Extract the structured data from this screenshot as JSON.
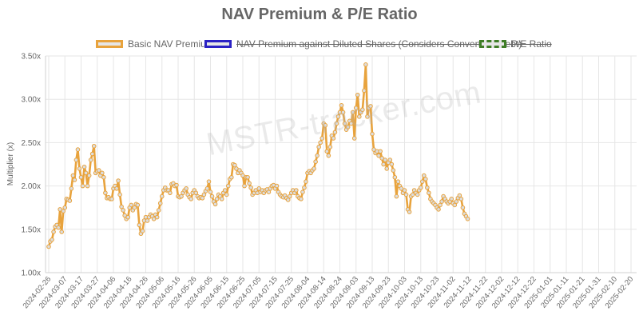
{
  "chart_data": {
    "type": "line",
    "title": "NAV Premium & P/E Ratio",
    "ylabel": "Multiplier (x)",
    "xlabel": "",
    "ylim": [
      1.0,
      3.5
    ],
    "yticks": [
      "1.00x",
      "1.50x",
      "2.00x",
      "2.50x",
      "3.00x",
      "3.50x"
    ],
    "x_tick_labels": [
      "2024-02-26",
      "2024-03-07",
      "2024-03-17",
      "2024-03-27",
      "2024-04-06",
      "2024-04-16",
      "2024-04-26",
      "2024-05-06",
      "2024-05-16",
      "2024-05-26",
      "2024-06-05",
      "2024-06-15",
      "2024-06-25",
      "2024-07-05",
      "2024-07-15",
      "2024-07-25",
      "2024-08-04",
      "2024-08-14",
      "2024-08-24",
      "2024-09-03",
      "2024-09-13",
      "2024-09-23",
      "2024-10-03",
      "2024-10-13",
      "2024-10-23",
      "2024-11-02",
      "2024-11-12",
      "2024-11-22",
      "2024-12-02",
      "2024-12-12",
      "2024-12-22",
      "2025-01-01",
      "2025-01-11",
      "2025-01-21",
      "2025-01-31",
      "2025-02-10",
      "2025-02-20"
    ],
    "days_between_ticks": 10,
    "legend_position": "top",
    "grid": true,
    "series": [
      {
        "name": "Basic NAV Premium",
        "color": "#e8a33d",
        "fill": "#e6e6e6",
        "visible": true,
        "anchors": [
          [
            0,
            1.3
          ],
          [
            1,
            1.36
          ],
          [
            2,
            1.38
          ],
          [
            3,
            1.47
          ],
          [
            4,
            1.53
          ],
          [
            5,
            1.55
          ],
          [
            6,
            1.52
          ],
          [
            7,
            1.73
          ],
          [
            8,
            1.47
          ],
          [
            9,
            1.71
          ],
          [
            10,
            1.75
          ],
          [
            11,
            1.85
          ],
          [
            12,
            1.84
          ],
          [
            13,
            1.83
          ],
          [
            14,
            1.97
          ],
          [
            15,
            2.12
          ],
          [
            16,
            2.07
          ],
          [
            17,
            2.3
          ],
          [
            18,
            2.42
          ],
          [
            19,
            2.2
          ],
          [
            20,
            2.1
          ],
          [
            21,
            2.0
          ],
          [
            22,
            2.22
          ],
          [
            23,
            2.15
          ],
          [
            24,
            2.0
          ],
          [
            25,
            2.12
          ],
          [
            26,
            2.3
          ],
          [
            27,
            2.37
          ],
          [
            28,
            2.46
          ],
          [
            29,
            2.15
          ],
          [
            30,
            2.17
          ],
          [
            31,
            2.18
          ],
          [
            32,
            2.12
          ],
          [
            33,
            2.15
          ],
          [
            34,
            2.1
          ],
          [
            35,
            1.92
          ],
          [
            36,
            1.86
          ],
          [
            37,
            1.87
          ],
          [
            38,
            1.85
          ],
          [
            39,
            1.85
          ],
          [
            40,
            1.97
          ],
          [
            41,
            2.0
          ],
          [
            42,
            1.97
          ],
          [
            43,
            2.06
          ],
          [
            44,
            1.9
          ],
          [
            45,
            1.76
          ],
          [
            46,
            1.72
          ],
          [
            47,
            1.66
          ],
          [
            48,
            1.62
          ],
          [
            49,
            1.64
          ],
          [
            50,
            1.75
          ],
          [
            51,
            1.78
          ],
          [
            52,
            1.72
          ],
          [
            53,
            1.75
          ],
          [
            54,
            1.79
          ],
          [
            55,
            1.78
          ],
          [
            56,
            1.55
          ],
          [
            57,
            1.45
          ],
          [
            58,
            1.48
          ],
          [
            59,
            1.6
          ],
          [
            60,
            1.64
          ],
          [
            61,
            1.6
          ],
          [
            62,
            1.64
          ],
          [
            63,
            1.67
          ],
          [
            64,
            1.65
          ],
          [
            65,
            1.62
          ],
          [
            66,
            1.67
          ],
          [
            67,
            1.64
          ],
          [
            68,
            1.72
          ],
          [
            69,
            1.8
          ],
          [
            70,
            1.88
          ],
          [
            71,
            1.95
          ],
          [
            72,
            1.98
          ],
          [
            73,
            1.95
          ],
          [
            74,
            1.95
          ],
          [
            75,
            1.92
          ],
          [
            76,
            2.02
          ],
          [
            77,
            2.03
          ],
          [
            78,
            2.0
          ],
          [
            79,
            2.01
          ],
          [
            80,
            1.88
          ],
          [
            81,
            1.87
          ],
          [
            82,
            1.88
          ],
          [
            83,
            1.92
          ],
          [
            84,
            1.95
          ],
          [
            85,
            1.97
          ],
          [
            86,
            1.9
          ],
          [
            87,
            1.87
          ],
          [
            88,
            1.85
          ],
          [
            89,
            1.92
          ],
          [
            90,
            1.95
          ],
          [
            91,
            1.92
          ],
          [
            92,
            1.88
          ],
          [
            93,
            1.86
          ],
          [
            94,
            1.87
          ],
          [
            95,
            1.86
          ],
          [
            96,
            1.9
          ],
          [
            97,
            1.94
          ],
          [
            98,
            1.97
          ],
          [
            99,
            2.05
          ],
          [
            100,
            1.93
          ],
          [
            101,
            1.88
          ],
          [
            102,
            1.82
          ],
          [
            103,
            1.79
          ],
          [
            104,
            1.85
          ],
          [
            105,
            1.9
          ],
          [
            106,
            1.88
          ],
          [
            107,
            1.85
          ],
          [
            108,
            1.92
          ],
          [
            109,
            1.95
          ],
          [
            110,
            1.9
          ],
          [
            111,
            2.0
          ],
          [
            112,
            2.08
          ],
          [
            113,
            2.1
          ],
          [
            114,
            2.25
          ],
          [
            115,
            2.24
          ],
          [
            116,
            2.2
          ],
          [
            117,
            2.15
          ],
          [
            118,
            2.18
          ],
          [
            119,
            2.15
          ],
          [
            120,
            2.12
          ],
          [
            121,
            2.0
          ],
          [
            122,
            2.1
          ],
          [
            123,
            2.1
          ],
          [
            124,
            2.03
          ],
          [
            125,
            1.98
          ],
          [
            126,
            1.9
          ],
          [
            127,
            1.92
          ],
          [
            128,
            1.95
          ],
          [
            129,
            1.92
          ],
          [
            130,
            1.97
          ],
          [
            131,
            1.93
          ],
          [
            132,
            1.95
          ],
          [
            133,
            1.92
          ],
          [
            134,
            1.95
          ],
          [
            135,
            1.96
          ],
          [
            136,
            1.93
          ],
          [
            137,
            1.97
          ],
          [
            138,
            2.0
          ],
          [
            139,
            2.01
          ],
          [
            140,
            1.97
          ],
          [
            141,
            2.0
          ],
          [
            142,
            1.93
          ],
          [
            143,
            1.9
          ],
          [
            144,
            1.88
          ],
          [
            145,
            1.87
          ],
          [
            146,
            1.89
          ],
          [
            147,
            1.86
          ],
          [
            148,
            1.84
          ],
          [
            149,
            1.88
          ],
          [
            150,
            1.92
          ],
          [
            151,
            1.95
          ],
          [
            152,
            1.92
          ],
          [
            153,
            1.95
          ],
          [
            154,
            1.88
          ],
          [
            155,
            1.86
          ],
          [
            156,
            1.85
          ],
          [
            157,
            1.93
          ],
          [
            158,
            1.98
          ],
          [
            159,
            2.05
          ],
          [
            160,
            2.15
          ],
          [
            161,
            2.17
          ],
          [
            162,
            2.15
          ],
          [
            163,
            2.18
          ],
          [
            164,
            2.2
          ],
          [
            165,
            2.28
          ],
          [
            166,
            2.35
          ],
          [
            167,
            2.45
          ],
          [
            168,
            2.5
          ],
          [
            169,
            2.55
          ],
          [
            170,
            2.72
          ],
          [
            171,
            2.7
          ],
          [
            172,
            2.4
          ],
          [
            173,
            2.35
          ],
          [
            174,
            2.45
          ],
          [
            175,
            2.58
          ],
          [
            176,
            2.55
          ],
          [
            177,
            2.62
          ],
          [
            178,
            2.72
          ],
          [
            179,
            2.8
          ],
          [
            180,
            2.85
          ],
          [
            181,
            2.93
          ],
          [
            182,
            2.85
          ],
          [
            183,
            2.72
          ],
          [
            184,
            2.65
          ],
          [
            185,
            2.68
          ],
          [
            186,
            2.75
          ],
          [
            187,
            2.72
          ],
          [
            188,
            2.85
          ],
          [
            189,
            2.55
          ],
          [
            190,
            2.9
          ],
          [
            191,
            3.05
          ],
          [
            192,
            2.8
          ],
          [
            193,
            2.85
          ],
          [
            194,
            2.88
          ],
          [
            195,
            3.1
          ],
          [
            196,
            3.4
          ],
          [
            197,
            2.8
          ],
          [
            198,
            2.9
          ],
          [
            199,
            2.92
          ],
          [
            200,
            2.6
          ],
          [
            201,
            2.42
          ],
          [
            202,
            2.38
          ],
          [
            203,
            2.4
          ],
          [
            204,
            2.35
          ],
          [
            205,
            2.4
          ],
          [
            206,
            2.32
          ],
          [
            207,
            2.25
          ],
          [
            208,
            2.3
          ],
          [
            209,
            2.2
          ],
          [
            210,
            2.27
          ],
          [
            211,
            2.3
          ],
          [
            212,
            2.25
          ],
          [
            213,
            2.18
          ],
          [
            214,
            2.1
          ],
          [
            215,
            1.88
          ],
          [
            216,
            2.05
          ],
          [
            217,
            2.0
          ],
          [
            218,
            1.97
          ],
          [
            219,
            1.92
          ],
          [
            220,
            1.95
          ],
          [
            221,
            1.9
          ],
          [
            222,
            1.73
          ],
          [
            223,
            1.7
          ],
          [
            224,
            1.88
          ],
          [
            225,
            1.9
          ],
          [
            226,
            1.95
          ],
          [
            227,
            1.92
          ],
          [
            228,
            1.9
          ],
          [
            229,
            1.95
          ],
          [
            230,
            1.98
          ],
          [
            231,
            2.05
          ],
          [
            232,
            2.12
          ],
          [
            233,
            2.08
          ],
          [
            234,
            1.98
          ],
          [
            235,
            1.92
          ],
          [
            236,
            1.85
          ],
          [
            237,
            1.82
          ],
          [
            238,
            1.8
          ],
          [
            239,
            1.78
          ],
          [
            240,
            1.75
          ],
          [
            241,
            1.73
          ],
          [
            242,
            1.78
          ],
          [
            243,
            1.82
          ],
          [
            244,
            1.88
          ],
          [
            245,
            1.85
          ],
          [
            246,
            1.82
          ],
          [
            247,
            1.8
          ],
          [
            248,
            1.82
          ],
          [
            249,
            1.85
          ],
          [
            250,
            1.8
          ],
          [
            251,
            1.78
          ],
          [
            252,
            1.82
          ],
          [
            253,
            1.86
          ],
          [
            254,
            1.89
          ],
          [
            255,
            1.85
          ],
          [
            256,
            1.75
          ],
          [
            257,
            1.68
          ],
          [
            258,
            1.65
          ],
          [
            259,
            1.62
          ]
        ]
      },
      {
        "name": "NAV Premium against Diluted Shares (Considers Convertible Debt)",
        "color": "#2b22c4",
        "fill": "#e6e6e6",
        "visible": false,
        "anchors": []
      },
      {
        "name": "P/E Ratio",
        "color": "#3f7d26",
        "fill": "#e6e6e6",
        "visible": false,
        "anchors": []
      }
    ]
  },
  "watermark": "MSTR-tracker.com"
}
